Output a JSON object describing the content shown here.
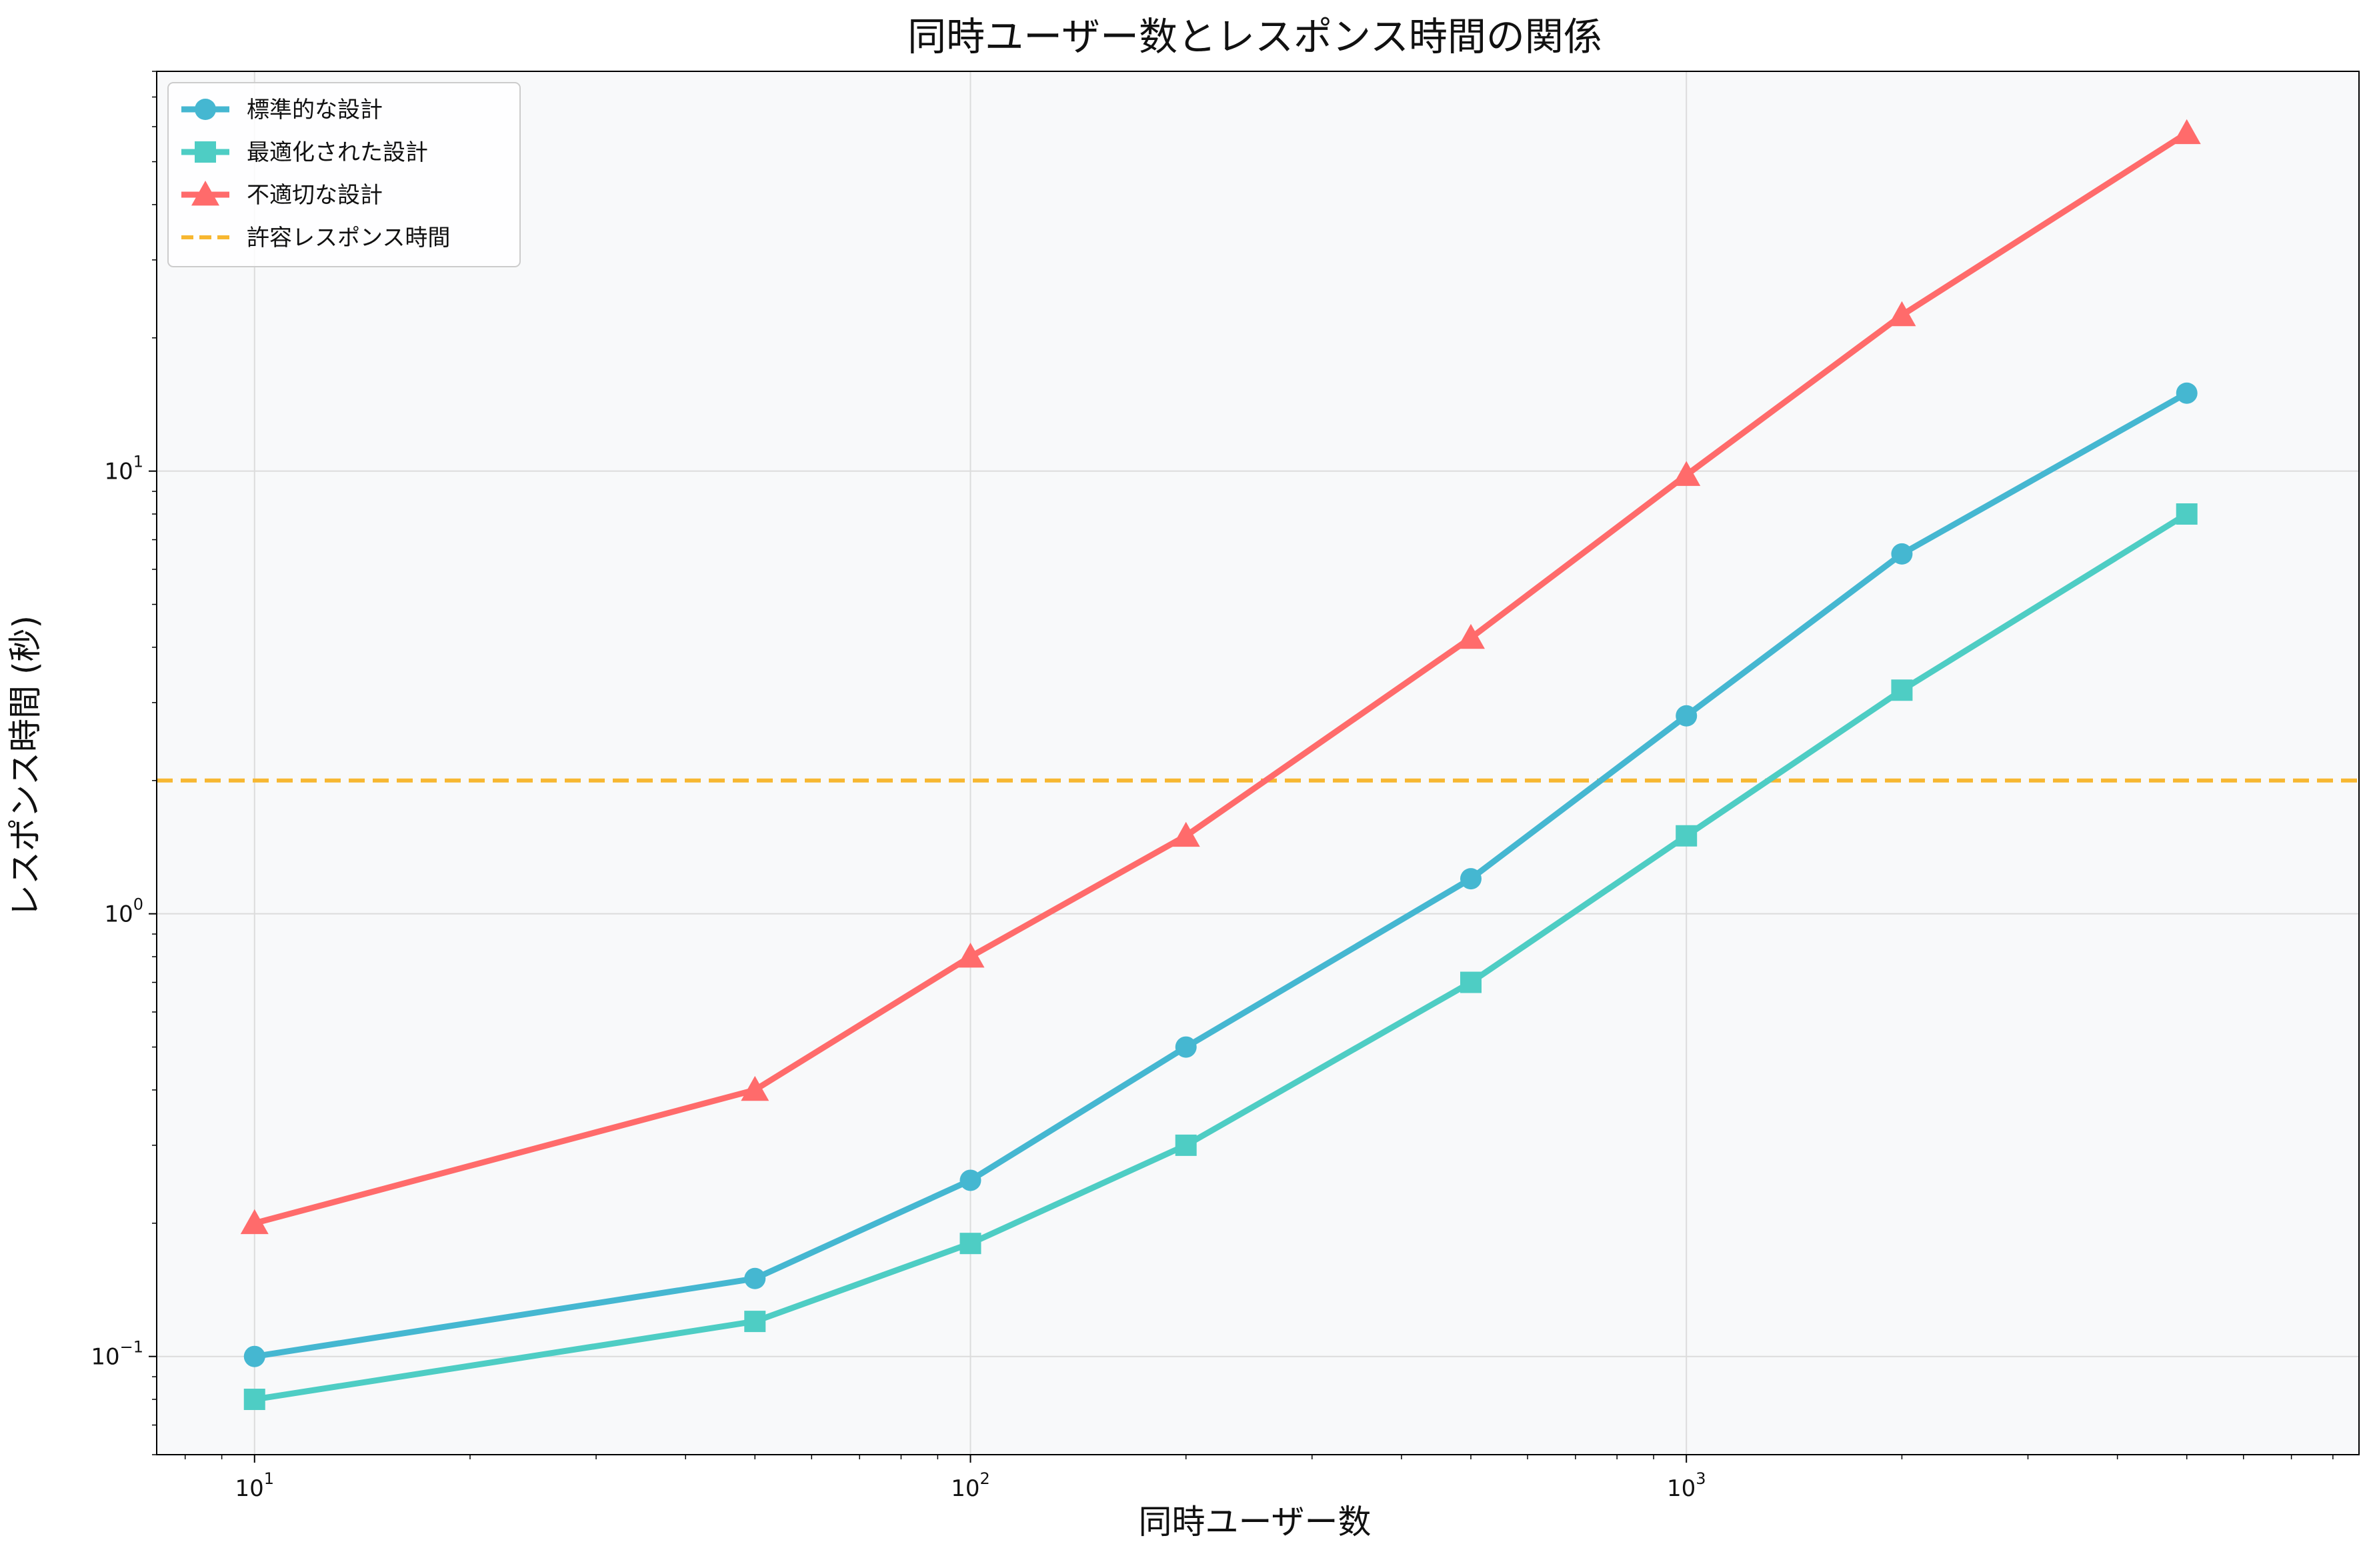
{
  "chart_data": {
    "type": "line",
    "title": "同時ユーザー数とレスポンス時間の関係",
    "xlabel": "同時ユーザー数",
    "ylabel": "レスポンス時間 (秒)",
    "xscale": "log",
    "yscale": "log",
    "xlim": [
      7.3,
      8700
    ],
    "ylim": [
      0.06,
      80
    ],
    "grid": true,
    "legend_position": "top-left",
    "x_ticks": [
      {
        "value": 10,
        "base": "10",
        "exp": "1"
      },
      {
        "value": 100,
        "base": "10",
        "exp": "2"
      },
      {
        "value": 1000,
        "base": "10",
        "exp": "3"
      }
    ],
    "y_ticks": [
      {
        "value": 0.1,
        "base": "10",
        "exp": "−1"
      },
      {
        "value": 1,
        "base": "10",
        "exp": "0"
      },
      {
        "value": 10,
        "base": "10",
        "exp": "1"
      }
    ],
    "x": [
      10,
      50,
      100,
      200,
      500,
      1000,
      2000,
      5000
    ],
    "series": [
      {
        "name": "標準的な設計",
        "color": "#45B7D1",
        "marker": "circle",
        "values": [
          0.1,
          0.15,
          0.25,
          0.5,
          1.2,
          2.8,
          6.5,
          15
        ]
      },
      {
        "name": "最適化された設計",
        "color": "#4ECDC4",
        "marker": "square",
        "values": [
          0.08,
          0.12,
          0.18,
          0.3,
          0.7,
          1.5,
          3.2,
          8
        ]
      },
      {
        "name": "不適切な設計",
        "color": "#FF6B6B",
        "marker": "triangle",
        "values": [
          0.2,
          0.4,
          0.8,
          1.5,
          4.2,
          9.8,
          22.5,
          58
        ]
      }
    ],
    "reference_line": {
      "name": "許容レスポンス時間",
      "value": 2,
      "color": "#F7B731",
      "style": "dashed"
    }
  },
  "colors": {
    "plot_background": "#F8F9FA"
  }
}
